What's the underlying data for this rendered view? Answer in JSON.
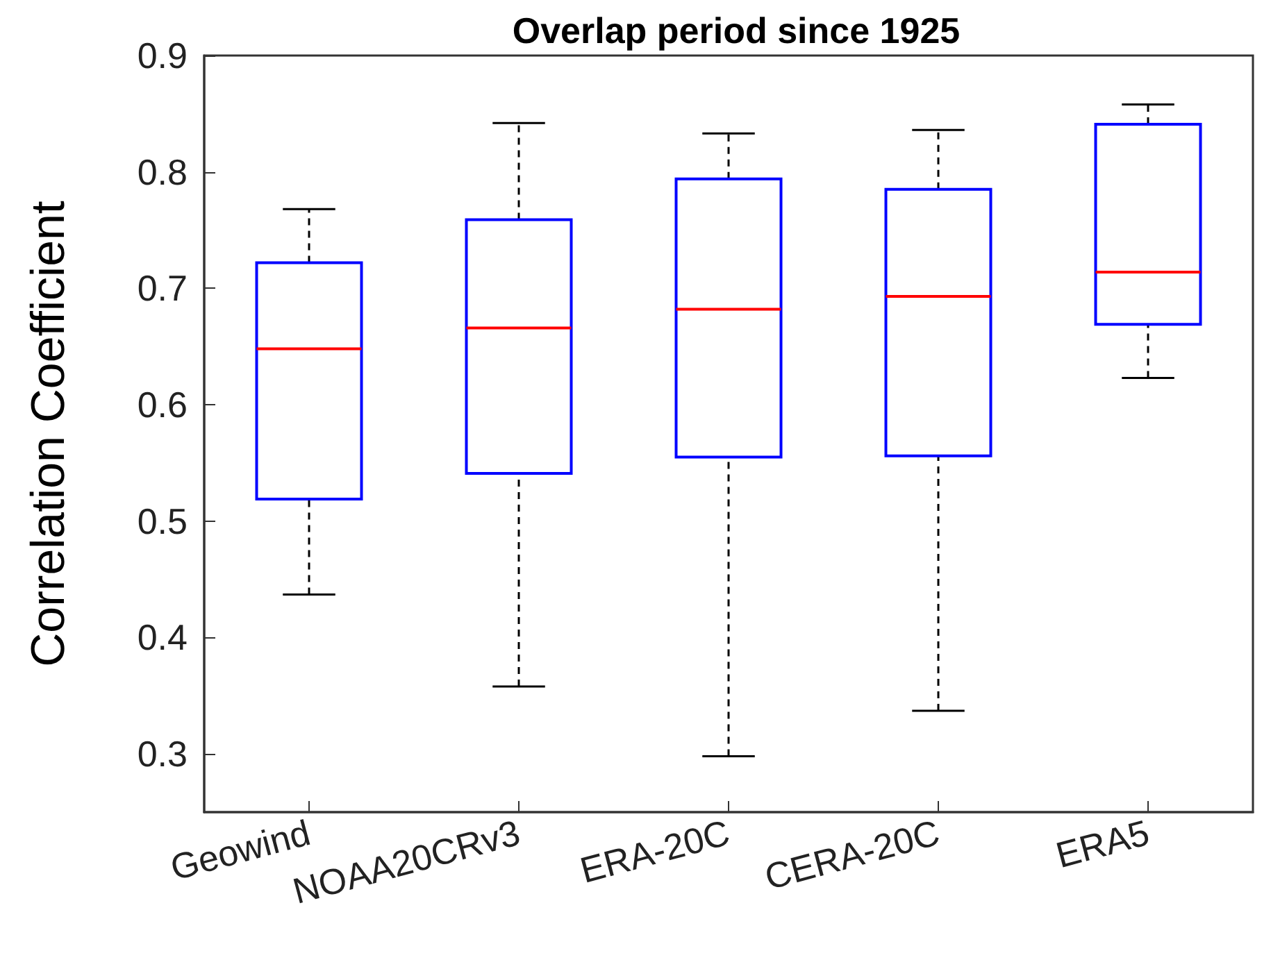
{
  "chart_data": {
    "type": "box",
    "title": "Overlap period since 1925",
    "ylabel": "Correlation Coefficient",
    "categories": [
      "Geowind",
      "NOAA20CRv3",
      "ERA-20C",
      "CERA-20C",
      "ERA5"
    ],
    "series": [
      {
        "color": "#0000ff",
        "boxes": [
          {
            "low": 0.437,
            "q1": 0.519,
            "median": 0.648,
            "q3": 0.722,
            "high": 0.768
          },
          {
            "low": 0.358,
            "q1": 0.541,
            "median": 0.666,
            "q3": 0.759,
            "high": 0.842
          },
          {
            "low": 0.298,
            "q1": 0.555,
            "median": 0.682,
            "q3": 0.794,
            "high": 0.833
          },
          {
            "low": 0.337,
            "q1": 0.556,
            "median": 0.693,
            "q3": 0.785,
            "high": 0.836
          },
          {
            "low": 0.623,
            "q1": 0.669,
            "median": 0.714,
            "q3": 0.841,
            "high": 0.858
          }
        ]
      }
    ],
    "ylim": [
      0.25,
      0.9
    ],
    "yticks": [
      0.3,
      0.4,
      0.5,
      0.6,
      0.7,
      0.8,
      0.9
    ],
    "grid": false
  }
}
